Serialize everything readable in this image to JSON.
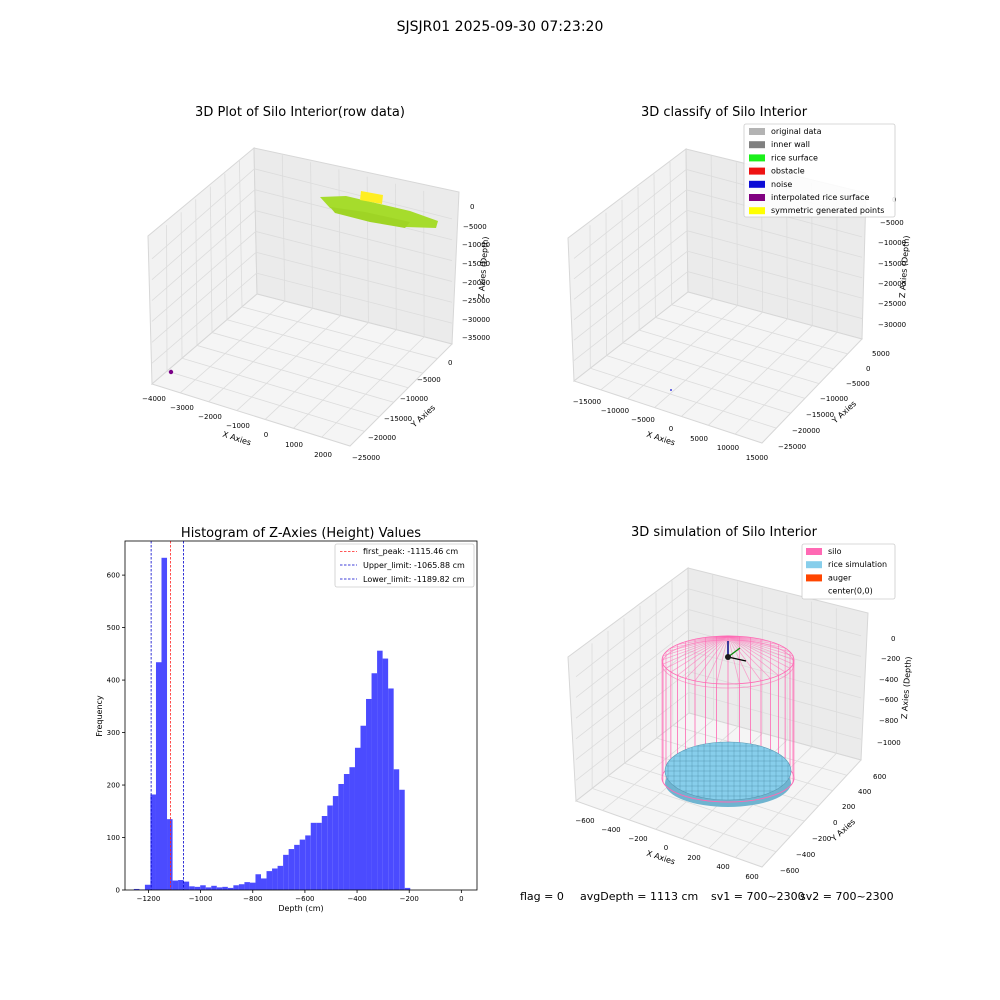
{
  "figure": {
    "suptitle": "SJSJR01 2025-09-30 07:23:20",
    "status": {
      "flag": "flag = 0",
      "avg_depth": "avgDepth = 1113 cm",
      "sv1": "sv1 = 700~2300",
      "sv2": "sv2 = 700~2300"
    }
  },
  "chart_data": [
    {
      "type": "scatter",
      "projection": "3d",
      "title": "3D Plot of Silo Interior(row data)",
      "xlabel": "X Axies",
      "ylabel": "Y Axies",
      "zlabel": "Z Axies (Depth)",
      "x_ticks": [
        "−4000",
        "−3000",
        "−2000",
        "−1000",
        "0",
        "1000",
        "2000"
      ],
      "y_ticks": [
        "−25000",
        "−20000",
        "−15000",
        "−10000",
        "−5000",
        "0"
      ],
      "z_ticks": [
        "0",
        "−5000",
        "−10000",
        "−15000",
        "−20000",
        "−25000",
        "−30000",
        "−35000"
      ],
      "series": [
        {
          "color": "#a6dc2c",
          "label": "rice surface",
          "x": [
            -2300,
            1800
          ],
          "y": [
            -1200,
            600
          ],
          "z": [
            -1000,
            -800
          ]
        },
        {
          "color": "#ffee22",
          "label": "symmetric",
          "x": [
            -900,
            -300
          ],
          "y": [
            -1500,
            -1100
          ],
          "z": [
            -400,
            -300
          ]
        },
        {
          "color": "#7a0087",
          "label": "point",
          "x": [
            -3600
          ],
          "y": [
            -25000
          ],
          "z": [
            -35000
          ]
        }
      ]
    },
    {
      "type": "scatter",
      "projection": "3d",
      "title": "3D classify of Silo Interior",
      "xlabel": "X Axies",
      "ylabel": "Y Axies",
      "zlabel": "Z Axies (Depth)",
      "x_ticks": [
        "−15000",
        "−10000",
        "−5000",
        "0",
        "5000",
        "10000",
        "15000"
      ],
      "y_ticks": [
        "−25000",
        "−20000",
        "−15000",
        "−10000",
        "−5000",
        "0",
        "5000"
      ],
      "z_ticks": [
        "0",
        "−5000",
        "−10000",
        "−15000",
        "−20000",
        "−25000",
        "−30000"
      ],
      "legend": {
        "placement": "upper right",
        "entries": [
          {
            "label": "original data",
            "color": "#b3b3b3"
          },
          {
            "label": "inner wall",
            "color": "#808080"
          },
          {
            "label": "rice surface",
            "color": "#1af01a"
          },
          {
            "label": "obstacle",
            "color": "#ee1111"
          },
          {
            "label": "noise",
            "color": "#0b0bd6"
          },
          {
            "label": "interpolated rice surface",
            "color": "#800080"
          },
          {
            "label": "symmetric generated points",
            "color": "#ffff00"
          }
        ]
      }
    },
    {
      "type": "histogram",
      "title": "Histogram of Z-Axies (Height) Values",
      "xlabel": "Depth (cm)",
      "ylabel": "Frequency",
      "xlim": [
        -1290,
        60
      ],
      "ylim": [
        0,
        665
      ],
      "x_ticks": [
        -1200,
        -1000,
        -800,
        -600,
        -400,
        -200,
        0
      ],
      "x_tick_labels": [
        "−1200",
        "−1000",
        "−800",
        "−600",
        "−400",
        "−200",
        "0"
      ],
      "y_ticks": [
        0,
        100,
        200,
        300,
        400,
        500,
        600
      ],
      "bar_color": "#4b4bff",
      "bin_width": 21.2,
      "bins_start": -1256,
      "values": [
        2,
        1,
        10,
        182,
        434,
        633,
        135,
        18,
        19,
        16,
        7,
        6,
        9,
        5,
        8,
        5,
        6,
        4,
        9,
        11,
        15,
        14,
        30,
        22,
        36,
        41,
        46,
        67,
        78,
        86,
        96,
        104,
        128,
        128,
        141,
        161,
        179,
        202,
        221,
        234,
        271,
        313,
        364,
        413,
        456,
        441,
        384,
        230,
        191,
        4
      ],
      "vlines": [
        {
          "x": -1115.46,
          "color": "#ff2020",
          "label": "first_peak: -1115.46 cm"
        },
        {
          "x": -1065.88,
          "color": "#0000cc",
          "label": "Upper_limit: -1065.88 cm"
        },
        {
          "x": -1189.82,
          "color": "#0000cc",
          "label": "Lower_limit: -1189.82 cm"
        }
      ],
      "legend": {
        "placement": "upper right"
      }
    },
    {
      "type": "surface",
      "projection": "3d",
      "title": "3D simulation of Silo Interior",
      "xlabel": "X Axies",
      "ylabel": "Y Axies",
      "zlabel": "Z Axies (Depth)",
      "x_ticks": [
        "−600",
        "−400",
        "−200",
        "0",
        "200",
        "400",
        "600"
      ],
      "y_ticks": [
        "−600",
        "−400",
        "−200",
        "0",
        "200",
        "400",
        "600"
      ],
      "z_ticks": [
        "0",
        "−200",
        "−400",
        "−600",
        "−800",
        "−1000"
      ],
      "legend": {
        "placement": "upper right",
        "entries": [
          {
            "label": "silo",
            "color": "#ff69b4"
          },
          {
            "label": "rice simulation",
            "color": "#87ceeb"
          },
          {
            "label": "auger",
            "color": "#ff4500"
          },
          {
            "label": "center(0,0)",
            "color": "#ffffff"
          }
        ]
      }
    }
  ]
}
